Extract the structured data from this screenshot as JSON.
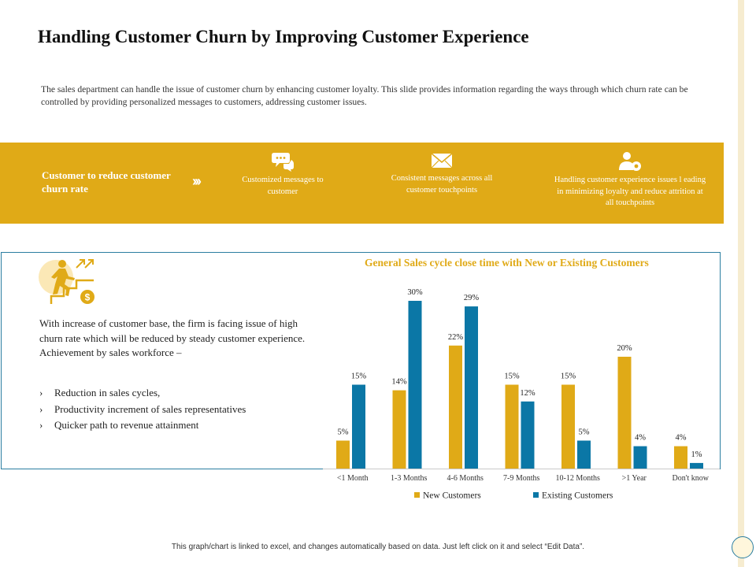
{
  "title": "Handling Customer Churn by Improving Customer Experience",
  "intro": "The sales department can handle the issue of customer  churn by enhancing customer  loyalty. This slide provides information regarding the ways through which churn rate can be controlled  by providing personalized messages to customers,  addressing customer  issues.",
  "band": {
    "heading": "Customer to reduce customer churn rate",
    "chevrons": "›››",
    "steps": [
      {
        "icon": "chat-bubbles-icon",
        "label": "Customized messages to customer"
      },
      {
        "icon": "envelope-icon",
        "label": "Consistent messages across all customer touchpoints"
      },
      {
        "icon": "customer-settings-icon",
        "label": "Handling customer experience issues l eading in minimizing  loyalty and reduce attrition  at all touchpoints"
      }
    ]
  },
  "side": {
    "icon": "growth-stairs-icon",
    "paragraph": "With increase of customer base, the firm is facing issue of high churn rate which will be reduced by steady customer experience.",
    "achievement": "Achievement by sales workforce –",
    "bullet_marker": "›",
    "bullets": [
      "Reduction in sales cycles,",
      "Productivity increment of sales representatives",
      "Quicker path to revenue attainment"
    ]
  },
  "chart_data": {
    "type": "bar",
    "title": "General Sales cycle close time with New or Existing Customers",
    "categories": [
      "<1 Month",
      "1-3 Months",
      "4-6 Months",
      "7-9 Months",
      "10-12 Months",
      ">1 Year",
      "Don't know"
    ],
    "series": [
      {
        "name": "New Customers",
        "values": [
          5,
          14,
          22,
          15,
          15,
          20,
          4
        ],
        "color": "#e0aa17"
      },
      {
        "name": "Existing Customers",
        "values": [
          15,
          30,
          29,
          12,
          5,
          4,
          1
        ],
        "color": "#0b77a6"
      }
    ],
    "ylim": [
      0,
      30
    ],
    "value_suffix": "%",
    "legend": "bottom"
  },
  "footnote": "This graph/chart is linked to excel, and changes automatically based on data. Just left click on it and select “Edit Data”."
}
